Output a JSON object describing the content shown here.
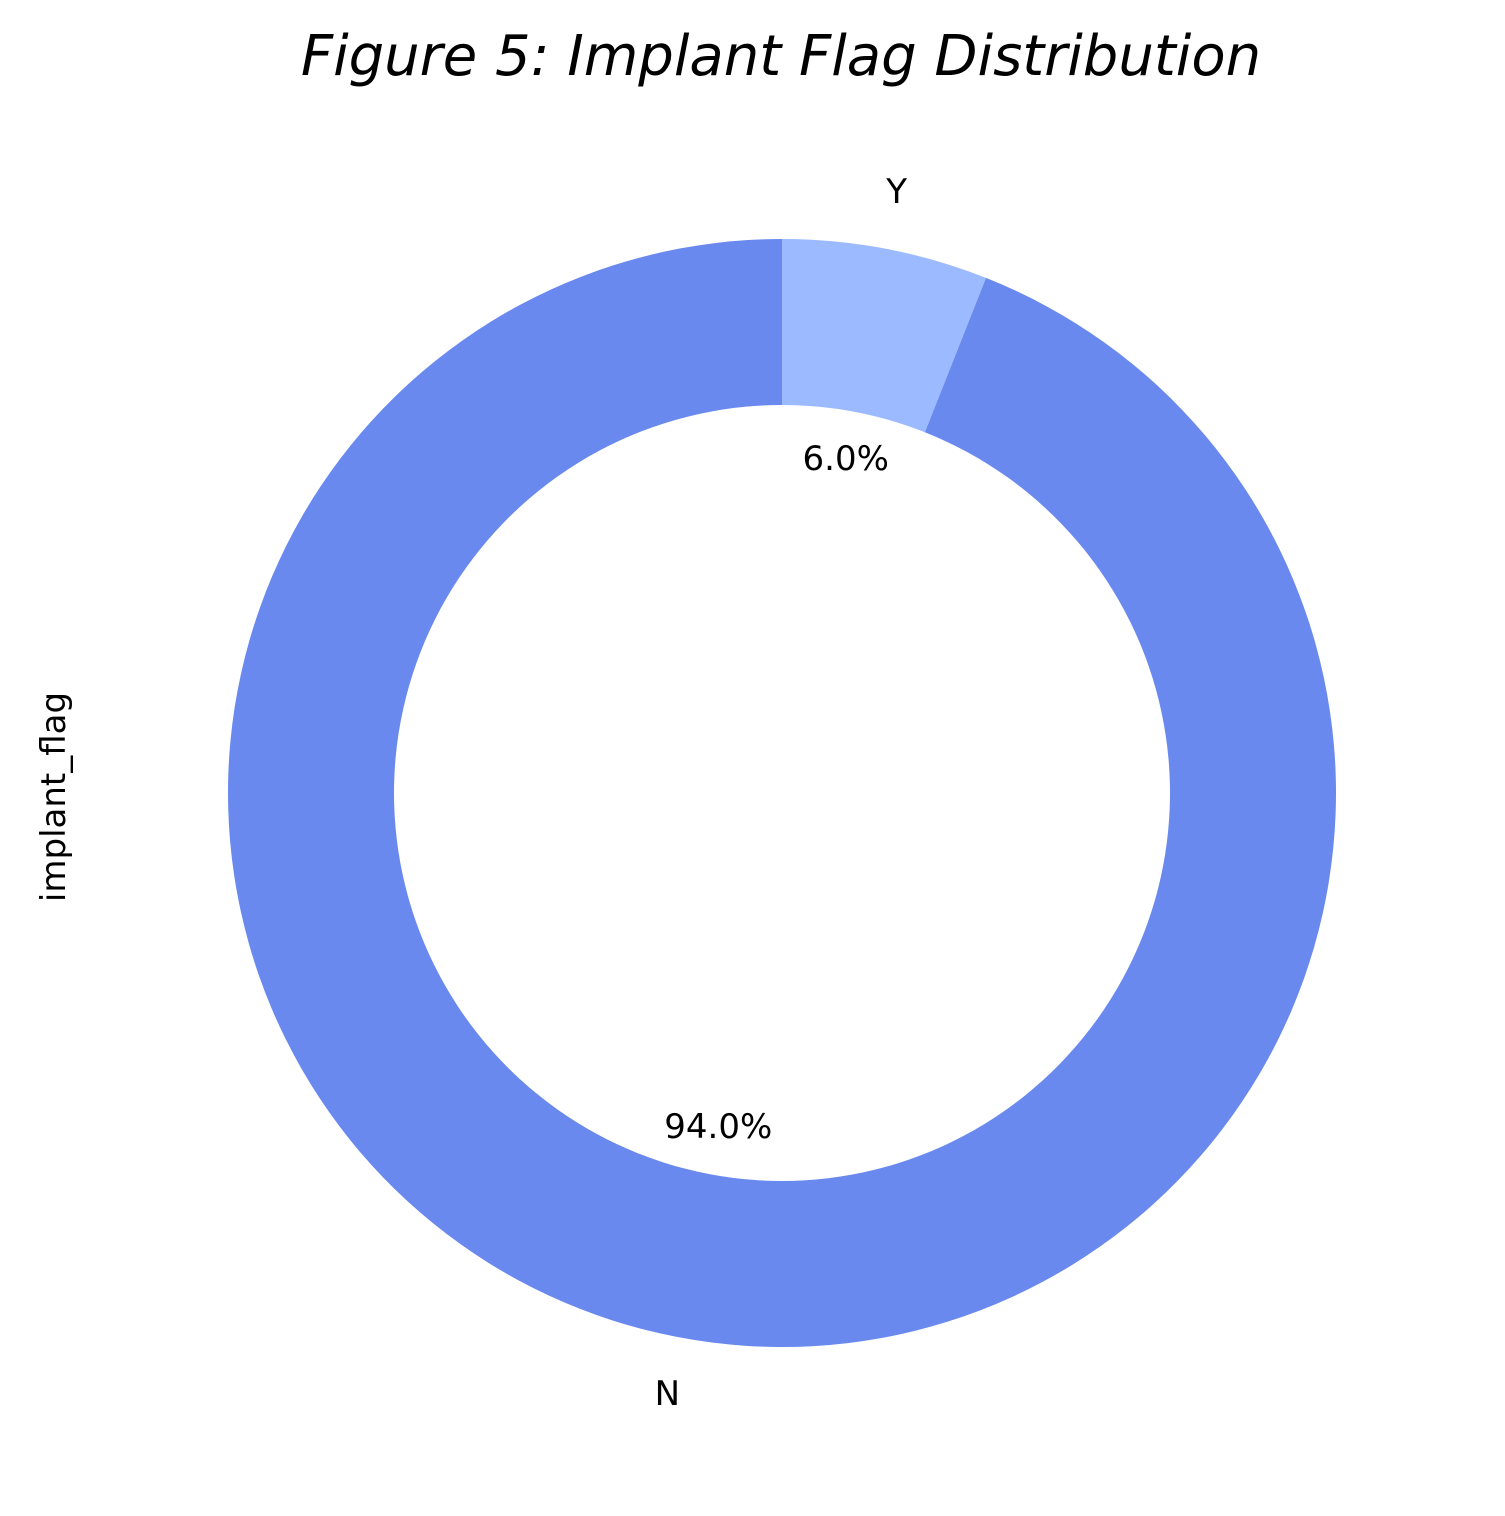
{
  "chart_data": {
    "type": "pie",
    "donut": true,
    "title": "Figure 5: Implant Flag Distribution",
    "ylabel": "implant_flag",
    "start_angle_deg": 90,
    "direction": "counterclockwise",
    "slices": [
      {
        "label": "N",
        "value": 94.0,
        "pct_label": "94.0%",
        "color": "#6989ee"
      },
      {
        "label": "Y",
        "value": 6.0,
        "pct_label": "6.0%",
        "color": "#9bbaff"
      }
    ]
  }
}
